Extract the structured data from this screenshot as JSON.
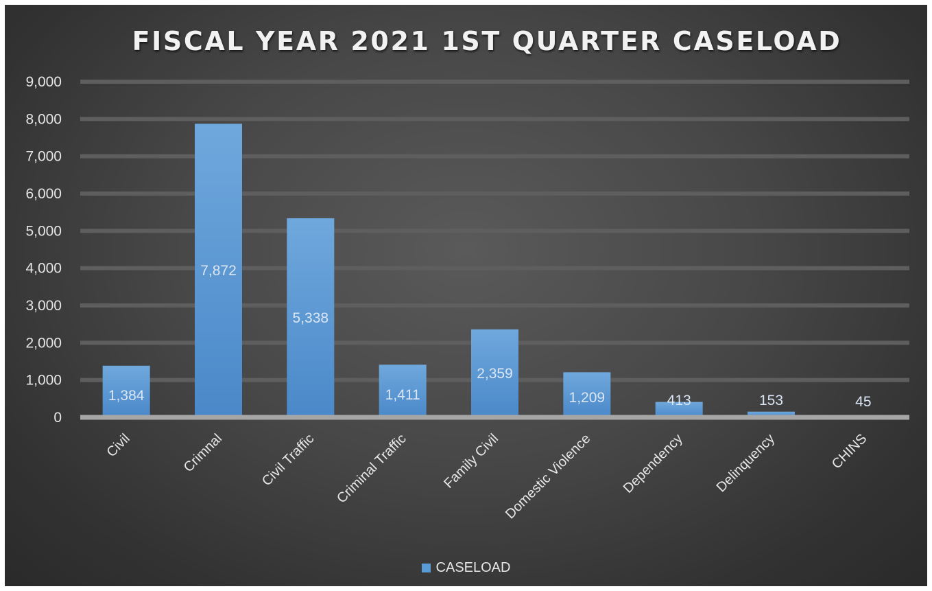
{
  "chart_data": {
    "type": "bar",
    "title": "FISCAL YEAR 2021 1ST QUARTER CASELOAD",
    "categories": [
      "Civil",
      "Crimnal",
      "Civil Traffic",
      "Criminal Traffic",
      "Family Civil",
      "Domestic Violence",
      "Dependency",
      "Delinquency",
      "CHINS"
    ],
    "series": [
      {
        "name": "CASELOAD",
        "values": [
          1384,
          7872,
          5338,
          1411,
          2359,
          1209,
          413,
          153,
          45
        ]
      }
    ],
    "value_labels": [
      "1,384",
      "7,872",
      "5,338",
      "1,411",
      "2,359",
      "1,209",
      "413",
      "153",
      "45"
    ],
    "y_ticks": [
      "0",
      "1,000",
      "2,000",
      "3,000",
      "4,000",
      "5,000",
      "6,000",
      "7,000",
      "8,000",
      "9,000"
    ],
    "ylim": [
      0,
      9000
    ],
    "grid": true,
    "legend_position": "bottom",
    "colors": {
      "bar": "#5b9bd5",
      "background": "#404040",
      "grid": "#5e5e5e",
      "text": "#e6e6e6"
    }
  }
}
